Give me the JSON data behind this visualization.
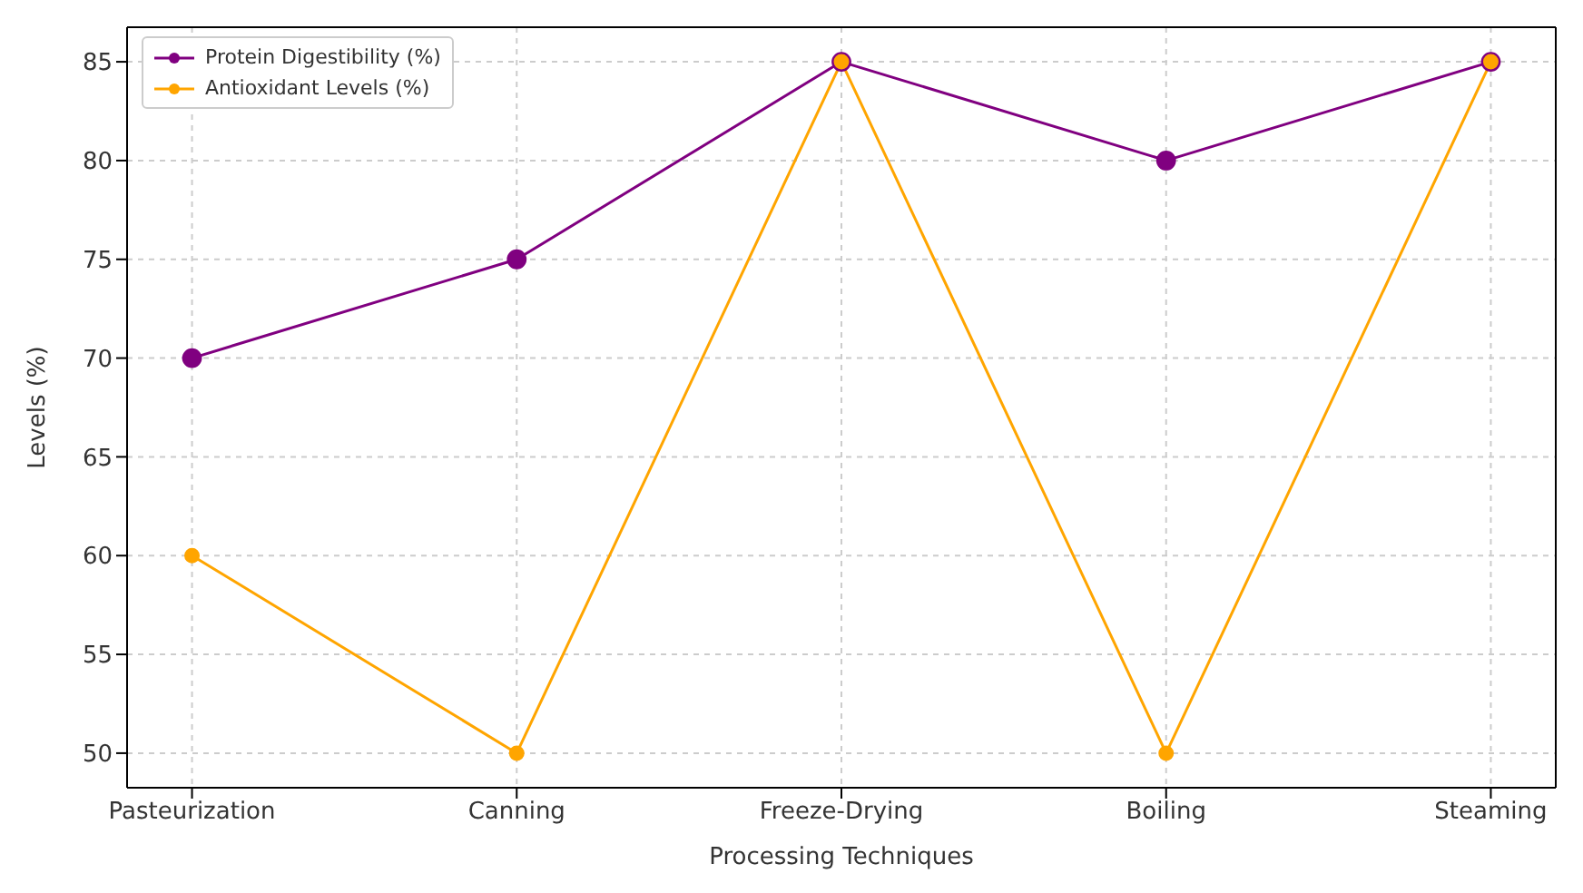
{
  "chart_data": {
    "type": "line",
    "xlabel": "Processing Techniques",
    "ylabel": "Levels (%)",
    "categories": [
      "Pasteurization",
      "Canning",
      "Freeze-Drying",
      "Boiling",
      "Steaming"
    ],
    "series": [
      {
        "name": "Protein Digestibility (%)",
        "color": "#800080",
        "values": [
          70,
          75,
          85,
          80,
          85
        ]
      },
      {
        "name": "Antioxidant Levels (%)",
        "color": "#ffa500",
        "values": [
          60,
          50,
          85,
          50,
          85
        ]
      }
    ],
    "ylim": [
      48.25,
      86.75
    ],
    "yticks": [
      50,
      55,
      60,
      65,
      70,
      75,
      80,
      85
    ],
    "grid": true,
    "legend": "top left",
    "marker": "circle",
    "line_style": "solid"
  }
}
